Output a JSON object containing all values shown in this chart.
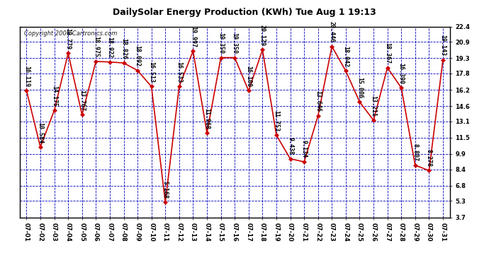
{
  "title": "DailySolar Energy Production (KWh) Tue Aug 1 19:13",
  "copyright": "Copyright 2006 Cartronics.com",
  "dates": [
    "07-01",
    "07-02",
    "07-03",
    "07-04",
    "07-05",
    "07-06",
    "07-07",
    "07-08",
    "07-09",
    "07-10",
    "07-11",
    "07-12",
    "07-13",
    "07-14",
    "07-15",
    "07-16",
    "07-17",
    "07-18",
    "07-19",
    "07-20",
    "07-21",
    "07-22",
    "07-23",
    "07-24",
    "07-25",
    "07-26",
    "07-27",
    "07-28",
    "07-29",
    "07-30",
    "07-31"
  ],
  "values": [
    16.119,
    10.584,
    14.175,
    19.779,
    13.767,
    18.975,
    18.922,
    18.826,
    18.092,
    16.513,
    5.168,
    16.533,
    19.997,
    11.968,
    19.35,
    19.35,
    16.1,
    20.129,
    11.753,
    9.438,
    9.134,
    13.646,
    20.446,
    18.042,
    15.006,
    13.211,
    18.367,
    16.39,
    8.807,
    8.278,
    19.143
  ],
  "line_color": "#cc0000",
  "marker_color": "#cc0000",
  "bg_color": "#ffffff",
  "plot_bg_color": "#ffffff",
  "grid_color": "#0000bb",
  "text_color": "#000000",
  "title_color": "#000000",
  "ylim": [
    3.7,
    22.4
  ],
  "yticks": [
    3.7,
    5.3,
    6.8,
    8.4,
    9.9,
    11.5,
    13.1,
    14.6,
    16.2,
    17.8,
    19.3,
    20.9,
    22.4
  ],
  "label_fontsize": 6,
  "annotation_fontsize": 6,
  "copyright_fontsize": 6,
  "title_fontsize": 9
}
